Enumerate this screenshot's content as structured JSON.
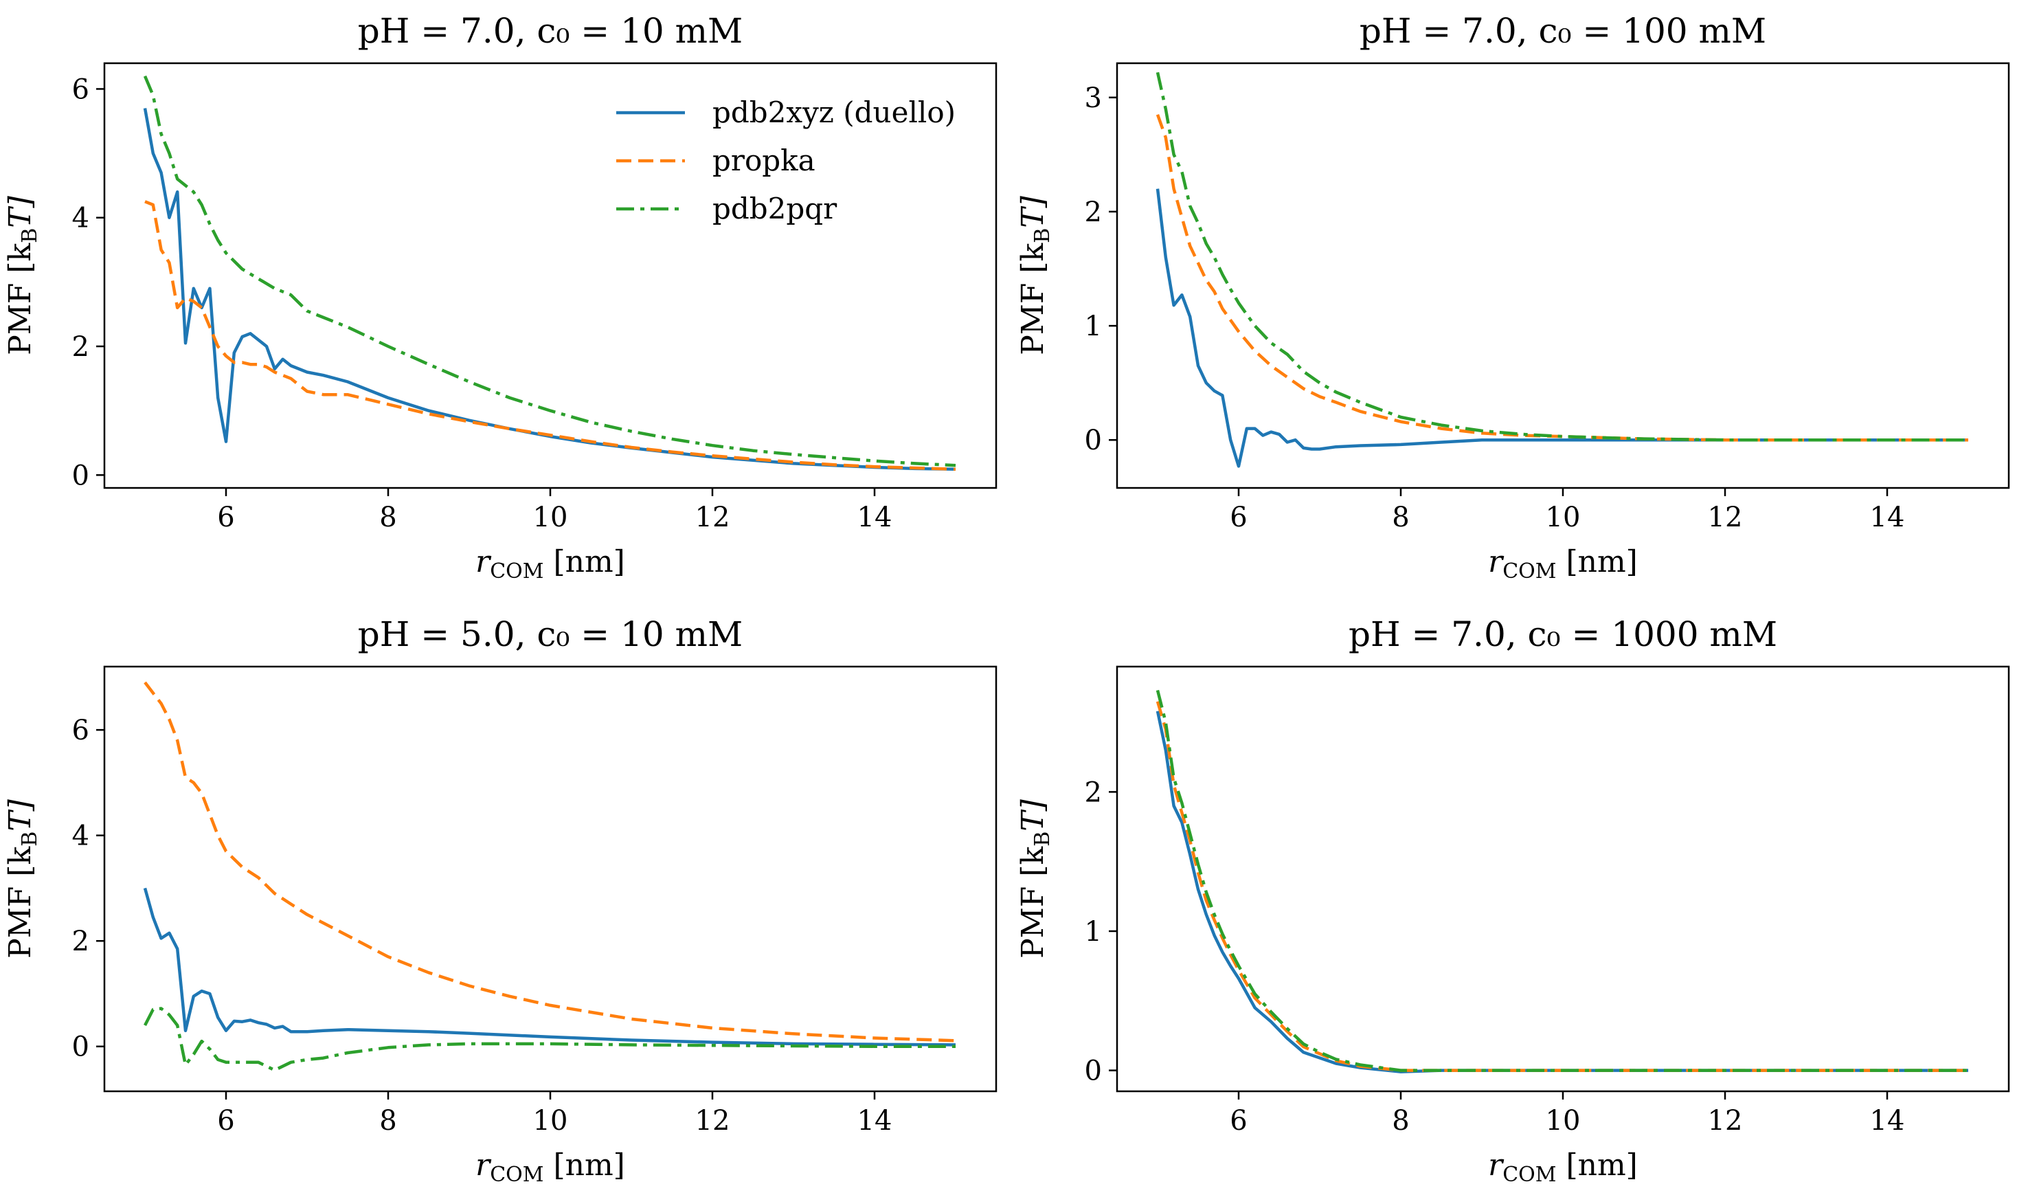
{
  "figure": {
    "legend": {
      "location": "upper-right",
      "entries": [
        {
          "label": "pdb2xyz (duello)",
          "style": "solid",
          "color": "#1f77b4"
        },
        {
          "label": "propka",
          "style": "dashed",
          "color": "#ff7f0e"
        },
        {
          "label": "pdb2pqr",
          "style": "dashdot",
          "color": "#2ca02c"
        }
      ]
    }
  },
  "chart_data": [
    {
      "type": "line",
      "title": "pH = 7.0, c₀ = 10 mM",
      "xlabel": "r_COM [nm]",
      "xlabel_main": "r",
      "xlabel_sub": "COM",
      "xlabel_unit": " [nm]",
      "ylabel": "PMF [k_B T]",
      "ylabel_main": "PMF [k",
      "ylabel_sub": "B",
      "ylabel_unit": "T]",
      "xlim": [
        4.5,
        15.5
      ],
      "ylim": [
        -0.2,
        6.4
      ],
      "xticks": [
        6,
        8,
        10,
        12,
        14
      ],
      "yticks": [
        0,
        2,
        4,
        6
      ],
      "series": [
        {
          "name": "pdb2xyz (duello)",
          "color": "#1f77b4",
          "style": "solid",
          "x": [
            5.0,
            5.1,
            5.2,
            5.3,
            5.4,
            5.5,
            5.6,
            5.7,
            5.8,
            5.9,
            6.0,
            6.1,
            6.2,
            6.3,
            6.4,
            6.5,
            6.6,
            6.7,
            6.8,
            7.0,
            7.2,
            7.5,
            8.0,
            8.5,
            9.0,
            9.5,
            10.0,
            10.5,
            11.0,
            11.5,
            12.0,
            12.5,
            13.0,
            13.5,
            14.0,
            14.5,
            15.0
          ],
          "y": [
            5.7,
            5.0,
            4.7,
            4.0,
            4.4,
            2.05,
            2.9,
            2.6,
            2.9,
            1.2,
            0.52,
            1.9,
            2.15,
            2.2,
            2.1,
            2.0,
            1.65,
            1.8,
            1.7,
            1.6,
            1.55,
            1.45,
            1.2,
            1.0,
            0.85,
            0.72,
            0.6,
            0.5,
            0.42,
            0.35,
            0.28,
            0.23,
            0.18,
            0.15,
            0.12,
            0.1,
            0.09
          ]
        },
        {
          "name": "propka",
          "color": "#ff7f0e",
          "style": "dashed",
          "x": [
            5.0,
            5.1,
            5.2,
            5.3,
            5.4,
            5.5,
            5.6,
            5.7,
            5.8,
            5.9,
            6.0,
            6.1,
            6.2,
            6.3,
            6.4,
            6.5,
            6.6,
            6.7,
            6.8,
            6.9,
            7.0,
            7.2,
            7.5,
            8.0,
            8.5,
            9.0,
            9.5,
            10.0,
            10.5,
            11.0,
            11.5,
            12.0,
            12.5,
            13.0,
            13.5,
            14.0,
            14.5,
            15.0
          ],
          "y": [
            4.25,
            4.2,
            3.5,
            3.3,
            2.6,
            2.75,
            2.7,
            2.6,
            2.3,
            2.0,
            1.85,
            1.75,
            1.75,
            1.72,
            1.72,
            1.68,
            1.6,
            1.55,
            1.5,
            1.4,
            1.3,
            1.25,
            1.25,
            1.1,
            0.95,
            0.83,
            0.72,
            0.62,
            0.52,
            0.43,
            0.36,
            0.3,
            0.25,
            0.2,
            0.16,
            0.13,
            0.11,
            0.09
          ]
        },
        {
          "name": "pdb2pqr",
          "color": "#2ca02c",
          "style": "dashdot",
          "x": [
            5.0,
            5.1,
            5.2,
            5.3,
            5.4,
            5.5,
            5.6,
            5.7,
            5.8,
            5.9,
            6.0,
            6.2,
            6.4,
            6.6,
            6.8,
            7.0,
            7.2,
            7.5,
            8.0,
            8.5,
            9.0,
            9.5,
            10.0,
            10.5,
            11.0,
            11.5,
            12.0,
            12.5,
            13.0,
            13.5,
            14.0,
            14.5,
            15.0
          ],
          "y": [
            6.2,
            5.9,
            5.3,
            5.0,
            4.6,
            4.5,
            4.4,
            4.2,
            3.9,
            3.65,
            3.45,
            3.2,
            3.05,
            2.9,
            2.8,
            2.55,
            2.45,
            2.3,
            2.0,
            1.72,
            1.45,
            1.2,
            1.0,
            0.82,
            0.68,
            0.56,
            0.46,
            0.38,
            0.32,
            0.27,
            0.22,
            0.18,
            0.15
          ]
        }
      ]
    },
    {
      "type": "line",
      "title": "pH = 7.0, c₀ = 100 mM",
      "xlabel": "r_COM [nm]",
      "xlabel_main": "r",
      "xlabel_sub": "COM",
      "xlabel_unit": " [nm]",
      "ylabel": "PMF [k_B T]",
      "ylabel_main": "PMF [k",
      "ylabel_sub": "B",
      "ylabel_unit": "T]",
      "xlim": [
        4.5,
        15.5
      ],
      "ylim": [
        -0.42,
        3.3
      ],
      "xticks": [
        6,
        8,
        10,
        12,
        14
      ],
      "yticks": [
        0,
        1,
        2,
        3
      ],
      "series": [
        {
          "name": "pdb2xyz (duello)",
          "color": "#1f77b4",
          "style": "solid",
          "x": [
            5.0,
            5.1,
            5.2,
            5.3,
            5.4,
            5.5,
            5.6,
            5.7,
            5.8,
            5.9,
            6.0,
            6.1,
            6.2,
            6.3,
            6.4,
            6.5,
            6.6,
            6.7,
            6.8,
            6.9,
            7.0,
            7.2,
            7.5,
            8.0,
            8.5,
            9.0,
            10.0,
            11.0,
            12.0,
            13.0,
            14.0,
            15.0
          ],
          "y": [
            2.2,
            1.6,
            1.18,
            1.27,
            1.08,
            0.65,
            0.5,
            0.43,
            0.39,
            0.0,
            -0.23,
            0.1,
            0.1,
            0.04,
            0.07,
            0.05,
            -0.02,
            0.0,
            -0.07,
            -0.08,
            -0.08,
            -0.06,
            -0.05,
            -0.04,
            -0.02,
            0.0,
            0.0,
            0.0,
            0.0,
            0.0,
            0.0,
            0.0
          ]
        },
        {
          "name": "propka",
          "color": "#ff7f0e",
          "style": "dashed",
          "x": [
            5.0,
            5.1,
            5.2,
            5.3,
            5.4,
            5.5,
            5.6,
            5.7,
            5.8,
            5.9,
            6.0,
            6.2,
            6.4,
            6.6,
            6.8,
            7.0,
            7.2,
            7.5,
            8.0,
            8.5,
            9.0,
            9.5,
            10.0,
            11.0,
            12.0,
            13.0,
            14.0,
            15.0
          ],
          "y": [
            2.85,
            2.65,
            2.2,
            1.95,
            1.7,
            1.55,
            1.4,
            1.3,
            1.15,
            1.05,
            0.95,
            0.78,
            0.65,
            0.55,
            0.45,
            0.38,
            0.33,
            0.25,
            0.16,
            0.1,
            0.06,
            0.04,
            0.03,
            0.01,
            0.0,
            0.0,
            0.0,
            0.0
          ]
        },
        {
          "name": "pdb2pqr",
          "color": "#2ca02c",
          "style": "dashdot",
          "x": [
            5.0,
            5.1,
            5.2,
            5.3,
            5.4,
            5.5,
            5.6,
            5.7,
            5.8,
            5.9,
            6.0,
            6.2,
            6.4,
            6.6,
            6.8,
            7.0,
            7.2,
            7.5,
            8.0,
            8.5,
            9.0,
            9.5,
            10.0,
            11.0,
            12.0,
            13.0,
            14.0,
            15.0
          ],
          "y": [
            3.22,
            2.9,
            2.5,
            2.35,
            2.05,
            1.9,
            1.72,
            1.6,
            1.45,
            1.32,
            1.2,
            1.0,
            0.85,
            0.75,
            0.6,
            0.5,
            0.42,
            0.33,
            0.2,
            0.13,
            0.08,
            0.05,
            0.03,
            0.01,
            0.0,
            0.0,
            0.0,
            0.0
          ]
        }
      ]
    },
    {
      "type": "line",
      "title": "pH = 5.0, c₀ = 10 mM",
      "xlabel": "r_COM [nm]",
      "xlabel_main": "r",
      "xlabel_sub": "COM",
      "xlabel_unit": " [nm]",
      "ylabel": "PMF [k_B T]",
      "ylabel_main": "PMF [k",
      "ylabel_sub": "B",
      "ylabel_unit": "T]",
      "xlim": [
        4.5,
        15.5
      ],
      "ylim": [
        -0.85,
        7.2
      ],
      "xticks": [
        6,
        8,
        10,
        12,
        14
      ],
      "yticks": [
        0,
        2,
        4,
        6
      ],
      "series": [
        {
          "name": "pdb2xyz (duello)",
          "color": "#1f77b4",
          "style": "solid",
          "x": [
            5.0,
            5.1,
            5.2,
            5.3,
            5.4,
            5.5,
            5.6,
            5.7,
            5.8,
            5.9,
            6.0,
            6.1,
            6.2,
            6.3,
            6.4,
            6.5,
            6.6,
            6.7,
            6.8,
            7.0,
            7.2,
            7.5,
            8.0,
            8.5,
            9.0,
            10.0,
            11.0,
            12.0,
            13.0,
            14.0,
            15.0
          ],
          "y": [
            3.0,
            2.45,
            2.05,
            2.15,
            1.85,
            0.3,
            0.95,
            1.05,
            1.0,
            0.55,
            0.3,
            0.48,
            0.47,
            0.5,
            0.45,
            0.42,
            0.35,
            0.38,
            0.28,
            0.28,
            0.3,
            0.32,
            0.3,
            0.28,
            0.25,
            0.18,
            0.12,
            0.08,
            0.05,
            0.04,
            0.03
          ]
        },
        {
          "name": "propka",
          "color": "#ff7f0e",
          "style": "dashed",
          "x": [
            5.0,
            5.1,
            5.2,
            5.3,
            5.4,
            5.5,
            5.6,
            5.7,
            5.8,
            5.9,
            6.0,
            6.2,
            6.4,
            6.6,
            6.8,
            7.0,
            7.5,
            8.0,
            8.5,
            9.0,
            9.5,
            10.0,
            11.0,
            12.0,
            13.0,
            14.0,
            15.0
          ],
          "y": [
            6.9,
            6.7,
            6.5,
            6.2,
            5.8,
            5.1,
            5.0,
            4.8,
            4.4,
            4.0,
            3.7,
            3.4,
            3.2,
            2.9,
            2.7,
            2.5,
            2.1,
            1.7,
            1.4,
            1.15,
            0.95,
            0.78,
            0.52,
            0.35,
            0.24,
            0.16,
            0.11
          ]
        },
        {
          "name": "pdb2pqr",
          "color": "#2ca02c",
          "style": "dashdot",
          "x": [
            5.0,
            5.1,
            5.2,
            5.3,
            5.4,
            5.5,
            5.6,
            5.7,
            5.8,
            5.9,
            6.0,
            6.2,
            6.4,
            6.6,
            6.8,
            7.0,
            7.2,
            7.5,
            8.0,
            8.5,
            9.0,
            10.0,
            11.0,
            12.0,
            13.0,
            14.0,
            15.0
          ],
          "y": [
            0.4,
            0.7,
            0.72,
            0.6,
            0.4,
            -0.35,
            -0.15,
            0.1,
            -0.05,
            -0.25,
            -0.3,
            -0.3,
            -0.3,
            -0.45,
            -0.3,
            -0.25,
            -0.22,
            -0.12,
            -0.02,
            0.03,
            0.05,
            0.05,
            0.03,
            0.02,
            0.01,
            0.0,
            0.0
          ]
        }
      ]
    },
    {
      "type": "line",
      "title": "pH = 7.0, c₀ = 1000 mM",
      "xlabel": "r_COM [nm]",
      "xlabel_main": "r",
      "xlabel_sub": "COM",
      "xlabel_unit": " [nm]",
      "ylabel": "PMF [k_B T]",
      "ylabel_main": "PMF [k",
      "ylabel_sub": "B",
      "ylabel_unit": "T]",
      "xlim": [
        4.5,
        15.5
      ],
      "ylim": [
        -0.15,
        2.9
      ],
      "xticks": [
        6,
        8,
        10,
        12,
        14
      ],
      "yticks": [
        0,
        1,
        2
      ],
      "series": [
        {
          "name": "pdb2xyz (duello)",
          "color": "#1f77b4",
          "style": "solid",
          "x": [
            5.0,
            5.1,
            5.2,
            5.3,
            5.4,
            5.5,
            5.6,
            5.7,
            5.8,
            5.9,
            6.0,
            6.2,
            6.4,
            6.6,
            6.8,
            7.0,
            7.2,
            7.5,
            8.0,
            8.5,
            9.0,
            10.0,
            11.0,
            12.0,
            13.0,
            14.0,
            15.0
          ],
          "y": [
            2.58,
            2.3,
            1.9,
            1.78,
            1.55,
            1.3,
            1.12,
            0.97,
            0.85,
            0.75,
            0.66,
            0.45,
            0.35,
            0.23,
            0.13,
            0.09,
            0.05,
            0.02,
            -0.01,
            0.0,
            0.0,
            0.0,
            0.0,
            0.0,
            0.0,
            0.0,
            0.0
          ]
        },
        {
          "name": "propka",
          "color": "#ff7f0e",
          "style": "dashed",
          "x": [
            5.0,
            5.1,
            5.2,
            5.3,
            5.4,
            5.5,
            5.6,
            5.7,
            5.8,
            5.9,
            6.0,
            6.2,
            6.4,
            6.6,
            6.8,
            7.0,
            7.2,
            7.5,
            8.0,
            8.5,
            9.0,
            10.0,
            11.0,
            12.0,
            13.0,
            14.0,
            15.0
          ],
          "y": [
            2.65,
            2.45,
            2.05,
            1.85,
            1.65,
            1.42,
            1.22,
            1.08,
            0.95,
            0.83,
            0.72,
            0.52,
            0.4,
            0.28,
            0.17,
            0.12,
            0.07,
            0.03,
            0.0,
            0.0,
            0.0,
            0.0,
            0.0,
            0.0,
            0.0,
            0.0,
            0.0
          ]
        },
        {
          "name": "pdb2pqr",
          "color": "#2ca02c",
          "style": "dashdot",
          "x": [
            5.0,
            5.1,
            5.2,
            5.3,
            5.4,
            5.5,
            5.6,
            5.7,
            5.8,
            5.9,
            6.0,
            6.2,
            6.4,
            6.6,
            6.8,
            7.0,
            7.2,
            7.5,
            8.0,
            8.5,
            9.0,
            10.0,
            11.0,
            12.0,
            13.0,
            14.0,
            15.0
          ],
          "y": [
            2.73,
            2.5,
            2.1,
            1.92,
            1.7,
            1.48,
            1.28,
            1.12,
            0.98,
            0.86,
            0.75,
            0.55,
            0.42,
            0.3,
            0.19,
            0.13,
            0.08,
            0.04,
            0.0,
            0.0,
            0.0,
            0.0,
            0.0,
            0.0,
            0.0,
            0.0,
            0.0
          ]
        }
      ]
    }
  ]
}
